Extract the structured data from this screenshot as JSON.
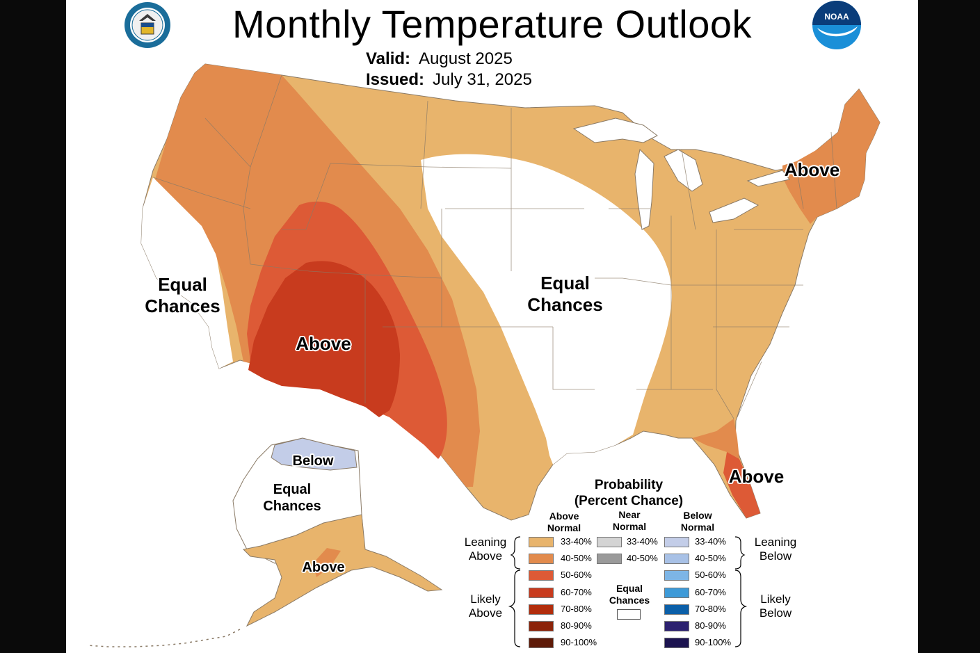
{
  "title": "Monthly Temperature Outlook",
  "valid_label": "Valid:",
  "valid_value": "August 2025",
  "issued_label": "Issued:",
  "issued_value": "July 31, 2025",
  "logos": {
    "commerce_seal_text": "DEPARTMENT OF COMMERCE · UNITED STATES OF AMERICA",
    "noaa_text": "NOAA"
  },
  "regions": {
    "west_ec": [
      "Equal",
      "Chances"
    ],
    "central_ec": [
      "Equal",
      "Chances"
    ],
    "southwest_above": "Above",
    "northeast_above": "Above",
    "florida_above": "Above",
    "alaska_below": "Below",
    "alaska_ec": [
      "Equal",
      "Chances"
    ],
    "alaska_above": "Above"
  },
  "legend": {
    "title": [
      "Probability",
      "(Percent Chance)"
    ],
    "above_header": [
      "Above",
      "Normal"
    ],
    "near_header": [
      "Near",
      "Normal"
    ],
    "below_header": [
      "Below",
      "Normal"
    ],
    "above": [
      {
        "label": "33-40%",
        "color": "#e8b46c"
      },
      {
        "label": "40-50%",
        "color": "#e28b4d"
      },
      {
        "label": "50-60%",
        "color": "#dd5a36"
      },
      {
        "label": "60-70%",
        "color": "#c83b1e"
      },
      {
        "label": "70-80%",
        "color": "#b22d0c"
      },
      {
        "label": "80-90%",
        "color": "#8c240a"
      },
      {
        "label": "90-100%",
        "color": "#5e1a08"
      }
    ],
    "near": [
      {
        "label": "33-40%",
        "color": "#d4d4d4"
      },
      {
        "label": "40-50%",
        "color": "#9a9a9a"
      }
    ],
    "below": [
      {
        "label": "33-40%",
        "color": "#c3cde8"
      },
      {
        "label": "40-50%",
        "color": "#a8c1e6"
      },
      {
        "label": "50-60%",
        "color": "#7db5e6"
      },
      {
        "label": "60-70%",
        "color": "#3d9ad8"
      },
      {
        "label": "70-80%",
        "color": "#0b5fa8"
      },
      {
        "label": "80-90%",
        "color": "#2c2170"
      },
      {
        "label": "90-100%",
        "color": "#1c1350"
      }
    ],
    "equal_chances": [
      "Equal",
      "Chances"
    ],
    "leaning_above": [
      "Leaning",
      "Above"
    ],
    "likely_above": [
      "Likely",
      "Above"
    ],
    "leaning_below": [
      "Leaning",
      "Below"
    ],
    "likely_below": [
      "Likely",
      "Below"
    ]
  },
  "colors": {
    "lean_above": "#e8b46c",
    "above_40_50": "#e28b4d",
    "above_50_60": "#dd5a36",
    "above_60_70": "#c83b1e",
    "lean_below": "#c3cde8",
    "equal_chances": "#ffffff"
  }
}
